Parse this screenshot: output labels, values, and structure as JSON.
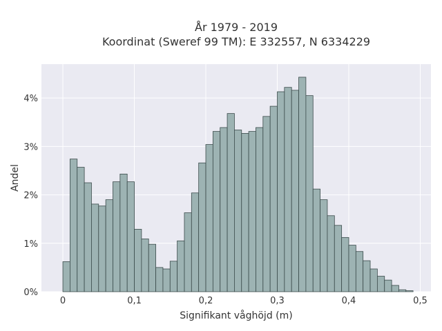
{
  "chart_data": {
    "type": "bar",
    "title_lines": [
      "År 1979 - 2019",
      "Koordinat (Sweref 99 TM): E 332557, N 6334229"
    ],
    "xlabel": "Signifikant våghöjd (m)",
    "ylabel": "Andel",
    "bin_width": 0.01,
    "xlim": [
      -0.03,
      0.515
    ],
    "ylim": [
      0,
      4.7
    ],
    "x_ticks": [
      0,
      0.1,
      0.2,
      0.3,
      0.4,
      0.5
    ],
    "x_tick_labels": [
      "0",
      "0,1",
      "0,2",
      "0,3",
      "0,4",
      "0,5"
    ],
    "y_ticks": [
      0,
      1,
      2,
      3,
      4
    ],
    "y_tick_labels": [
      "0%",
      "1%",
      "2%",
      "3%",
      "4%"
    ],
    "grid": true,
    "bin_starts": [
      0.0,
      0.01,
      0.02,
      0.03,
      0.04,
      0.05,
      0.06,
      0.07,
      0.08,
      0.09,
      0.1,
      0.11,
      0.12,
      0.13,
      0.14,
      0.15,
      0.16,
      0.17,
      0.18,
      0.19,
      0.2,
      0.21,
      0.22,
      0.23,
      0.24,
      0.25,
      0.26,
      0.27,
      0.28,
      0.29,
      0.3,
      0.31,
      0.32,
      0.33,
      0.34,
      0.35,
      0.36,
      0.37,
      0.38,
      0.39,
      0.4,
      0.41,
      0.42,
      0.43,
      0.44,
      0.45,
      0.46,
      0.47,
      0.48
    ],
    "values": [
      0.62,
      2.74,
      2.57,
      2.25,
      1.81,
      1.77,
      1.9,
      2.27,
      2.43,
      2.27,
      1.29,
      1.09,
      0.98,
      0.5,
      0.47,
      0.63,
      1.05,
      1.63,
      2.04,
      2.66,
      3.04,
      3.31,
      3.39,
      3.68,
      3.34,
      3.27,
      3.31,
      3.39,
      3.62,
      3.83,
      4.13,
      4.22,
      4.16,
      4.43,
      4.05,
      2.12,
      1.9,
      1.57,
      1.37,
      1.12,
      0.96,
      0.83,
      0.64,
      0.47,
      0.32,
      0.24,
      0.13,
      0.04,
      0.02
    ]
  }
}
